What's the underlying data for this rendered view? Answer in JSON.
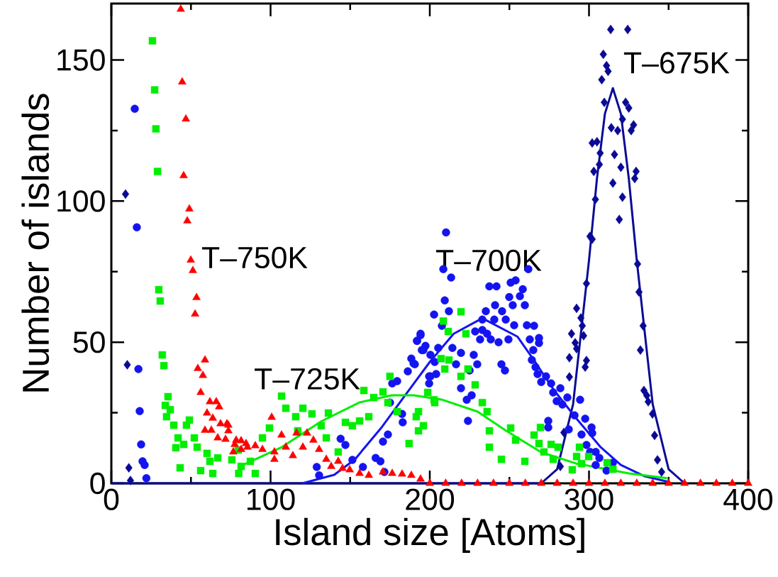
{
  "chart_data": {
    "type": "scatter",
    "xlabel": "Island size [Atoms]",
    "ylabel": "Number of islands",
    "xlim": [
      0,
      400
    ],
    "ylim": [
      0,
      170
    ],
    "xticks": [
      0,
      100,
      200,
      300,
      400
    ],
    "yticks": [
      0,
      50,
      100,
      150
    ],
    "series": [
      {
        "name": "T–675K",
        "type": "scatter",
        "marker": "diamond",
        "color": "#0a0a96",
        "x": [
          8.9,
          10,
          11,
          12,
          313.6,
          324.3,
          309,
          311,
          312,
          308,
          309.6,
          323,
          325,
          321,
          314,
          318,
          328,
          326.5,
          302,
          305,
          307,
          316,
          306.5,
          320,
          303,
          329.6,
          328.7,
          315,
          304,
          321,
          319,
          300.6,
          302,
          330.5,
          298.4,
          331.4,
          292.2,
          294.9,
          295.8,
          289,
          296.6,
          291.3,
          292.2,
          287.7,
          298.4,
          297.6,
          334,
          332.3,
          287.7,
          334.5,
          336.3,
          337.2,
          339.9,
          341.2,
          343,
          284.2,
          282,
          345.6
        ],
        "values": [
          102.5,
          42,
          5.5,
          1,
          160.8,
          160.8,
          152,
          148,
          146,
          143,
          135,
          135,
          133,
          129,
          126,
          125,
          127,
          125,
          120.6,
          121,
          117,
          116.5,
          113,
          112,
          110.5,
          110.5,
          108,
          106.4,
          100.6,
          101.4,
          93.5,
          87.5,
          86.5,
          77.7,
          70.8,
          67.8,
          62,
          58.6,
          55.8,
          53,
          52.3,
          49.8,
          47.7,
          44.5,
          43.5,
          41.2,
          55.8,
          47.2,
          37.7,
          32.9,
          31.1,
          28.9,
          24.6,
          17,
          8.3,
          18,
          6,
          4
        ]
      },
      {
        "type": "line",
        "marker": "none",
        "color": "#0a0a96",
        "x": [
          0,
          270,
          280,
          290,
          300,
          305,
          310,
          315,
          320,
          325,
          330,
          340,
          350,
          360
        ],
        "values": [
          0,
          0,
          5,
          28,
          79,
          108,
          131,
          140,
          131,
          108,
          79,
          28,
          5,
          0
        ]
      },
      {
        "name": "T–700K",
        "type": "scatter",
        "marker": "circle",
        "color": "#1414f0",
        "x": [
          14.7,
          16,
          17,
          17.8,
          18.7,
          19.6,
          20.9,
          22,
          130.5,
          129,
          144,
          147,
          151.4,
          158,
          166,
          169,
          171.5,
          173.7,
          170.6,
          176.4,
          179.5,
          175,
          182.6,
          183,
          186.2,
          190.6,
          188.4,
          192,
          194.2,
          197.3,
          196,
          200.4,
          202.7,
          203.1,
          199.6,
          200.4,
          210.2,
          208.5,
          213.4,
          209.4,
          212,
          207.6,
          237.4,
          241.9,
          250.8,
          253.9,
          258.4,
          261.9,
          249.9,
          256.6,
          252.1,
          259.7,
          241,
          235.2,
          245.4,
          233,
          240.5,
          247.7,
          253,
          261,
          265.5,
          228.5,
          233,
          236,
          231.6,
          238.3,
          243.2,
          249.4,
          262.8,
          268.6,
          265,
          194.2,
          192,
          195,
          205.3,
          214.2,
          219.6,
          227.6,
          216.5,
          229.8,
          245,
          247.2,
          264.1,
          189.8,
          199.6,
          204,
          266.4,
          267.7,
          270,
          273,
          225,
          219.6,
          226.3,
          223.2,
          224,
          276.2,
          277.5,
          282,
          279.7,
          286.4,
          283.3,
          294.4,
          290.9,
          297.6,
          274.4,
          287.3,
          295.3,
          302,
          298.4,
          300.7,
          306.5,
          304.2,
          311,
          268.6,
          301.6,
          304.2,
          315,
          274.4
        ],
        "values": [
          132.7,
          90.7,
          40.5,
          25.6,
          13.8,
          7.8,
          6.5,
          1.8,
          2.8,
          5.8,
          15.8,
          13.6,
          8.3,
          5.8,
          9,
          7.8,
          4,
          17.3,
          14.8,
          35.4,
          36.2,
          28.6,
          24.6,
          21.6,
          39.7,
          42.2,
          44.2,
          50.5,
          52.5,
          48.7,
          47.2,
          45.5,
          59.8,
          43,
          35.4,
          37.9,
          88.9,
          75.9,
          72.9,
          64.8,
          61,
          55.8,
          69.8,
          69.8,
          71.1,
          71.9,
          68.8,
          75.9,
          66,
          66.3,
          63.1,
          63.1,
          63.1,
          61,
          61,
          58,
          58,
          58,
          56,
          56,
          55.8,
          53.8,
          54.3,
          53,
          51,
          51,
          50,
          51,
          51,
          49.7,
          47.2,
          53,
          50.5,
          47.2,
          48,
          48,
          46.2,
          45.5,
          42.2,
          42.2,
          42.2,
          40,
          43.7,
          42.5,
          37.9,
          38.7,
          41.2,
          38.7,
          35.9,
          37.9,
          40,
          33.7,
          31.2,
          29.6,
          22.1,
          35.4,
          32.2,
          33.7,
          29.1,
          30.4,
          27.9,
          29.6,
          24.1,
          22.9,
          19.8,
          19.1,
          17.3,
          17.8,
          13.6,
          11.1,
          9,
          6.5,
          4.5,
          51.5,
          19.8,
          11.1,
          7.3,
          22.1
        ]
      },
      {
        "type": "line",
        "marker": "none",
        "color": "#1414f0",
        "x": [
          120,
          140,
          153,
          170,
          183,
          200,
          215,
          233,
          255,
          265,
          278,
          292,
          307,
          320,
          335,
          350
        ],
        "values": [
          0,
          3,
          8.5,
          20,
          30,
          43,
          53,
          58.5,
          52,
          44,
          33,
          23,
          13,
          6.5,
          2.5,
          0.5
        ]
      },
      {
        "name": "T–725K",
        "type": "scatter",
        "marker": "square",
        "color": "#00ee00",
        "x": [
          25.8,
          27.2,
          28,
          29,
          29.8,
          30.7,
          32,
          33,
          35.6,
          33.9,
          37,
          34.7,
          39.2,
          49,
          47.2,
          41.9,
          45.4,
          40.5,
          52.1,
          53.9,
          43.2,
          56.1,
          63.7,
          60.1,
          61.9,
          66.8,
          75.7,
          79.7,
          81.5,
          80,
          90.4,
          87.3,
          94.9,
          99.3,
          106.9,
          109.6,
          120.3,
          115.8,
          126,
          136.3,
          131.8,
          117.1,
          135,
          147,
          151.4,
          142.5,
          158.6,
          155.9,
          164.8,
          161.7,
          170.6,
          175,
          173.7,
          179.5,
          187,
          191.5,
          192.9,
          198.7,
          203.1,
          219.6,
          208.5,
          211.6,
          222.7,
          207.1,
          212,
          209.4,
          219.6,
          224,
          228.5,
          233,
          236,
          202.7,
          192.9,
          196,
          237.4,
          250.8,
          253.9,
          265.5,
          268.6,
          237.4,
          245,
          259.7,
          271.7,
          280.6,
          277.5,
          292.2,
          295.3,
          289.5,
          269.5,
          276.2,
          294,
          299.8,
          311.4,
          315
        ],
        "values": [
          156.8,
          139.4,
          125.6,
          110.5,
          68.6,
          64.6,
          45.5,
          41.7,
          30.7,
          27.6,
          26.1,
          23.6,
          20.6,
          22.4,
          20.6,
          16.1,
          13.8,
          12.6,
          16.1,
          12.8,
          5.5,
          4.5,
          3.5,
          10.6,
          7.8,
          9,
          8.3,
          11.8,
          6,
          3.5,
          3.5,
          7.8,
          16.1,
          19.6,
          30.9,
          26.6,
          26.6,
          23.6,
          24.6,
          24.9,
          20.4,
          18.6,
          16.1,
          21.6,
          20.4,
          11.1,
          32.9,
          22.1,
          30.4,
          23.6,
          32.4,
          37.9,
          28.6,
          25.4,
          14.1,
          23.6,
          18.6,
          32.2,
          28.6,
          60.8,
          57.5,
          53.8,
          53,
          44.2,
          43.7,
          40.5,
          37.9,
          40.5,
          34.9,
          28.6,
          25.4,
          29.6,
          25.4,
          20.4,
          18.6,
          19.6,
          15.3,
          17.1,
          14.1,
          12.8,
          8.5,
          7.8,
          11.1,
          12.8,
          8.5,
          9.5,
          7,
          4.8,
          19.8,
          13.8,
          12.8,
          9.5,
          7.3,
          5
        ]
      },
      {
        "type": "line",
        "marker": "none",
        "color": "#00ee00",
        "x": [
          80,
          107,
          132,
          156,
          176,
          190,
          208,
          230,
          248,
          270,
          292,
          302,
          325,
          349
        ],
        "values": [
          5.8,
          12.8,
          22,
          28.7,
          31.2,
          31.2,
          29.6,
          25.4,
          18.6,
          11,
          7,
          6,
          3.5,
          1.8
        ]
      },
      {
        "name": "T–750K",
        "type": "scatter",
        "marker": "triangle",
        "color": "#ff0000",
        "x": [
          43.6,
          44.5,
          46.8,
          45.4,
          49,
          47.7,
          49.9,
          51.2,
          53.5,
          52.6,
          58.8,
          54.3,
          57.5,
          56.1,
          61.9,
          65.9,
          60.1,
          67.7,
          63.7,
          68.6,
          73.5,
          58.8,
          62.8,
          66.8,
          71.7,
          77.5,
          81.5,
          85.5,
          76.6,
          72.6,
          73.5,
          78.4,
          84.6,
          81.5,
          90.4,
          100.7,
          94.9,
          102.4,
          106.9,
          109.6,
          116.3,
          114,
          122.9,
          120.3,
          126.9,
          130.5,
          102.4,
          135,
          138.1,
          142.5,
          145.2,
          149.7,
          155.9,
          161.7,
          170.6,
          176.4,
          182.6,
          188.4,
          194.2,
          200,
          210,
          220,
          230,
          240,
          250,
          260,
          270,
          280,
          290,
          300,
          310,
          320,
          330,
          340,
          350,
          360,
          370,
          380,
          390,
          400
        ],
        "values": [
          168,
          142.2,
          129.1,
          109,
          97.2,
          93,
          79.1,
          75.4,
          65.8,
          60,
          43.7,
          40.7,
          38.2,
          32.2,
          28.9,
          28.9,
          24.9,
          27.1,
          23.1,
          21.1,
          20.6,
          18.8,
          18.8,
          16.1,
          15.6,
          13.8,
          15.1,
          12.8,
          11.1,
          21.1,
          18.6,
          15.3,
          14.1,
          12,
          13.3,
          23.4,
          12,
          11.1,
          17.1,
          12.8,
          17.8,
          9.8,
          17.8,
          12.8,
          15.3,
          12,
          8.5,
          8.5,
          6,
          7.8,
          5.3,
          4.8,
          3.5,
          2.8,
          4,
          3.5,
          3.3,
          2.8,
          1.5,
          0,
          0,
          0,
          0,
          0,
          0,
          0,
          0,
          0,
          0,
          0,
          0,
          0,
          0,
          0,
          0,
          0,
          0,
          0,
          0,
          0
        ]
      }
    ]
  }
}
